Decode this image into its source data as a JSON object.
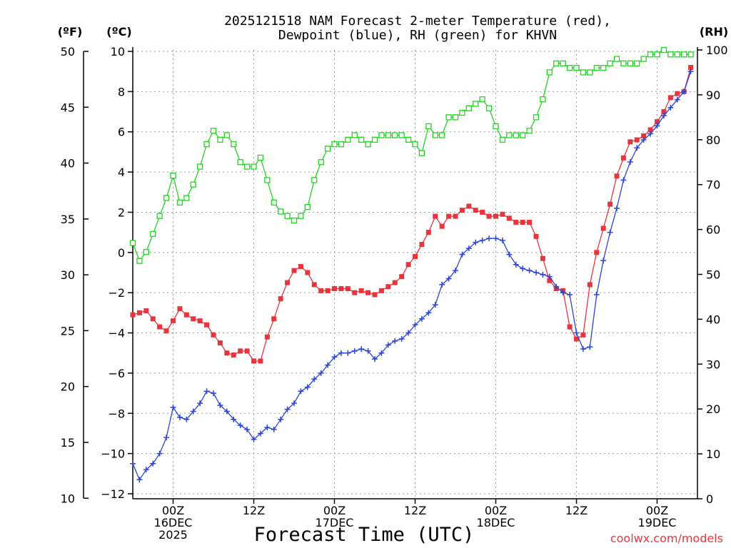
{
  "chart_data": {
    "type": "line",
    "title_line1": "2025121518 NAM Forecast 2-meter Temperature (red),",
    "title_line2": "Dewpoint (blue), RH (green) for KHVN",
    "xlabel": "Forecast Time (UTC)",
    "credit": "coolwx.com/models",
    "unit_left_f": "(ºF)",
    "unit_left_c": "(ºC)",
    "unit_right": "(RH)",
    "x_range_hours": [
      0,
      84
    ],
    "c_range": [
      -12,
      10
    ],
    "rh_range": [
      0,
      100
    ],
    "f_ticks": [
      "50",
      "45",
      "40",
      "35",
      "30",
      "25",
      "20",
      "15",
      "10"
    ],
    "f_values": [
      50,
      45,
      40,
      35,
      30,
      25,
      20,
      15,
      10
    ],
    "c_ticks": [
      "10",
      "8",
      "6",
      "4",
      "2",
      "0",
      "−2",
      "−4",
      "−6",
      "−8",
      "−10",
      "−12"
    ],
    "c_values": [
      10,
      8,
      6,
      4,
      2,
      0,
      -2,
      -4,
      -6,
      -8,
      -10,
      -12
    ],
    "rh_ticks": [
      "100",
      "90",
      "80",
      "70",
      "60",
      "50",
      "40",
      "30",
      "20",
      "10",
      "0"
    ],
    "rh_values": [
      100,
      90,
      80,
      70,
      60,
      50,
      40,
      30,
      20,
      10,
      0
    ],
    "x_ticks": [
      {
        "h": 6,
        "l1": "00Z",
        "l2": "16DEC",
        "l3": "2025"
      },
      {
        "h": 18,
        "l1": "12Z",
        "l2": "",
        "l3": ""
      },
      {
        "h": 30,
        "l1": "00Z",
        "l2": "17DEC",
        "l3": ""
      },
      {
        "h": 42,
        "l1": "12Z",
        "l2": "",
        "l3": ""
      },
      {
        "h": 54,
        "l1": "00Z",
        "l2": "18DEC",
        "l3": ""
      },
      {
        "h": 66,
        "l1": "12Z",
        "l2": "",
        "l3": ""
      },
      {
        "h": 78,
        "l1": "00Z",
        "l2": "19DEC",
        "l3": ""
      }
    ],
    "series": [
      {
        "name": "Temperature",
        "color": "#e8343c",
        "marker": "filled-square",
        "values": [
          -3.1,
          -3.0,
          -2.9,
          -3.3,
          -3.7,
          -3.9,
          -3.4,
          -2.8,
          -3.1,
          -3.3,
          -3.4,
          -3.6,
          -4.1,
          -4.5,
          -5.0,
          -5.1,
          -4.9,
          -4.9,
          -5.4,
          -5.4,
          -4.2,
          -3.3,
          -2.3,
          -1.5,
          -0.9,
          -0.7,
          -1.0,
          -1.6,
          -1.9,
          -1.9,
          -1.8,
          -1.8,
          -1.8,
          -2.0,
          -1.9,
          -2.0,
          -2.1,
          -1.9,
          -1.7,
          -1.5,
          -1.2,
          -0.6,
          -0.2,
          0.4,
          1.0,
          1.8,
          1.3,
          1.8,
          1.8,
          2.1,
          2.3,
          2.1,
          2.0,
          1.8,
          1.8,
          1.9,
          1.7,
          1.5,
          1.5,
          1.5,
          0.8,
          -0.3,
          -1.4,
          -1.8,
          -1.9,
          -3.7,
          -4.3,
          -4.1,
          -1.6,
          0.0,
          1.2,
          2.4,
          3.8,
          4.7,
          5.5,
          5.6,
          5.8,
          6.1,
          6.5,
          7.0,
          7.7,
          7.9,
          8.0,
          9.2
        ]
      },
      {
        "name": "Dewpoint",
        "color": "#2a43d8",
        "marker": "plus",
        "values": [
          -10.5,
          -11.3,
          -10.8,
          -10.5,
          -10.0,
          -9.2,
          -7.7,
          -8.2,
          -8.3,
          -7.9,
          -7.5,
          -6.9,
          -7.0,
          -7.6,
          -7.9,
          -8.3,
          -8.6,
          -8.8,
          -9.3,
          -9.0,
          -8.7,
          -8.8,
          -8.3,
          -7.8,
          -7.5,
          -6.9,
          -6.7,
          -6.3,
          -6.0,
          -5.6,
          -5.2,
          -5.0,
          -5.0,
          -4.9,
          -4.8,
          -4.9,
          -5.3,
          -5.0,
          -4.6,
          -4.4,
          -4.3,
          -4.0,
          -3.6,
          -3.3,
          -3.0,
          -2.6,
          -1.6,
          -1.3,
          -0.9,
          -0.1,
          0.2,
          0.5,
          0.6,
          0.7,
          0.7,
          0.6,
          -0.1,
          -0.6,
          -0.8,
          -0.9,
          -1.0,
          -1.1,
          -1.2,
          -1.7,
          -2.0,
          -2.1,
          -4.0,
          -4.8,
          -4.7,
          -2.1,
          -0.4,
          1.0,
          2.2,
          3.6,
          4.5,
          5.2,
          5.6,
          5.9,
          6.3,
          6.8,
          7.2,
          7.6,
          8.0,
          9.0
        ]
      },
      {
        "name": "RH",
        "color": "#21d521",
        "marker": "open-square",
        "axis": "rh",
        "values": [
          57,
          53,
          55,
          59,
          63,
          67,
          72,
          66,
          67,
          70,
          74,
          79,
          82,
          80,
          81,
          79,
          75,
          74,
          74,
          76,
          71,
          66,
          64,
          63,
          62,
          63,
          65,
          71,
          75,
          78,
          79,
          79,
          80,
          81,
          80,
          79,
          80,
          81,
          81,
          81,
          81,
          80,
          79,
          77,
          83,
          81,
          81,
          85,
          85,
          86,
          87,
          88,
          89,
          87,
          83,
          80,
          81,
          81,
          81,
          82,
          85,
          89,
          95,
          97,
          97,
          96,
          96,
          95,
          95,
          96,
          96,
          97,
          98,
          97,
          97,
          97,
          98,
          99,
          99,
          100,
          99,
          99,
          99,
          99
        ]
      }
    ]
  }
}
